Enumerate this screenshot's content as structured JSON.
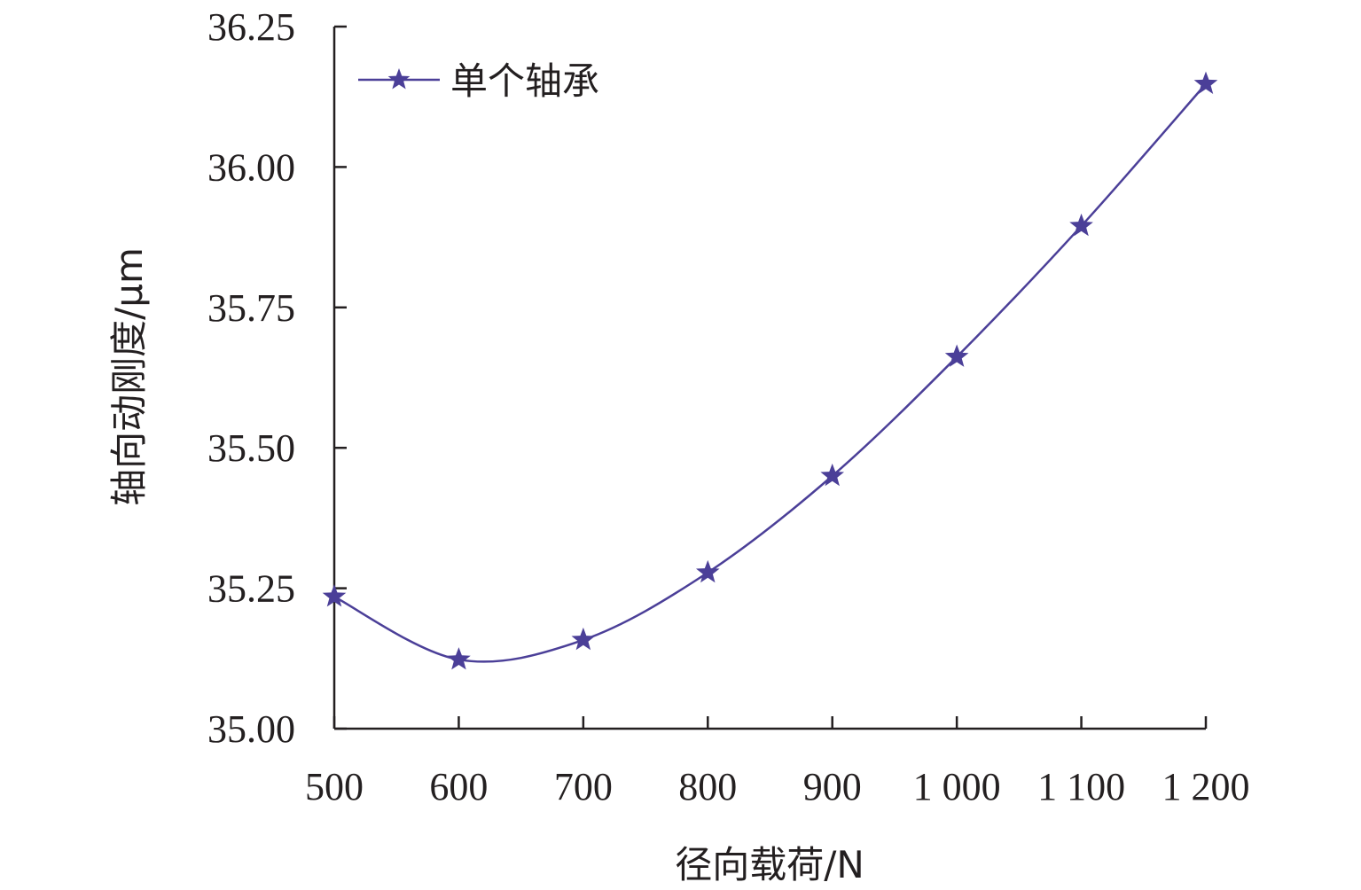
{
  "chart_data": {
    "type": "line",
    "title": "",
    "xlabel": "径向载荷/N",
    "ylabel": "轴向动刚度/μm",
    "x": [
      500,
      600,
      700,
      800,
      900,
      1000,
      1100,
      1200
    ],
    "x_tick_labels": [
      "500",
      "600",
      "700",
      "800",
      "900",
      "1 000",
      "1 100",
      "1 200"
    ],
    "y_ticks": [
      35.0,
      35.25,
      35.5,
      35.75,
      36.0,
      36.25
    ],
    "y_tick_labels": [
      "35.00",
      "35.25",
      "35.50",
      "35.75",
      "36.00",
      "36.25"
    ],
    "xlim": [
      500,
      1200
    ],
    "ylim": [
      35.0,
      36.25
    ],
    "grid": false,
    "legend_position": "top-left",
    "series": [
      {
        "name": "单个轴承",
        "marker": "star",
        "color": "#4b3f98",
        "values": [
          35.235,
          35.123,
          35.158,
          35.278,
          35.45,
          35.662,
          35.895,
          36.148
        ]
      }
    ]
  }
}
